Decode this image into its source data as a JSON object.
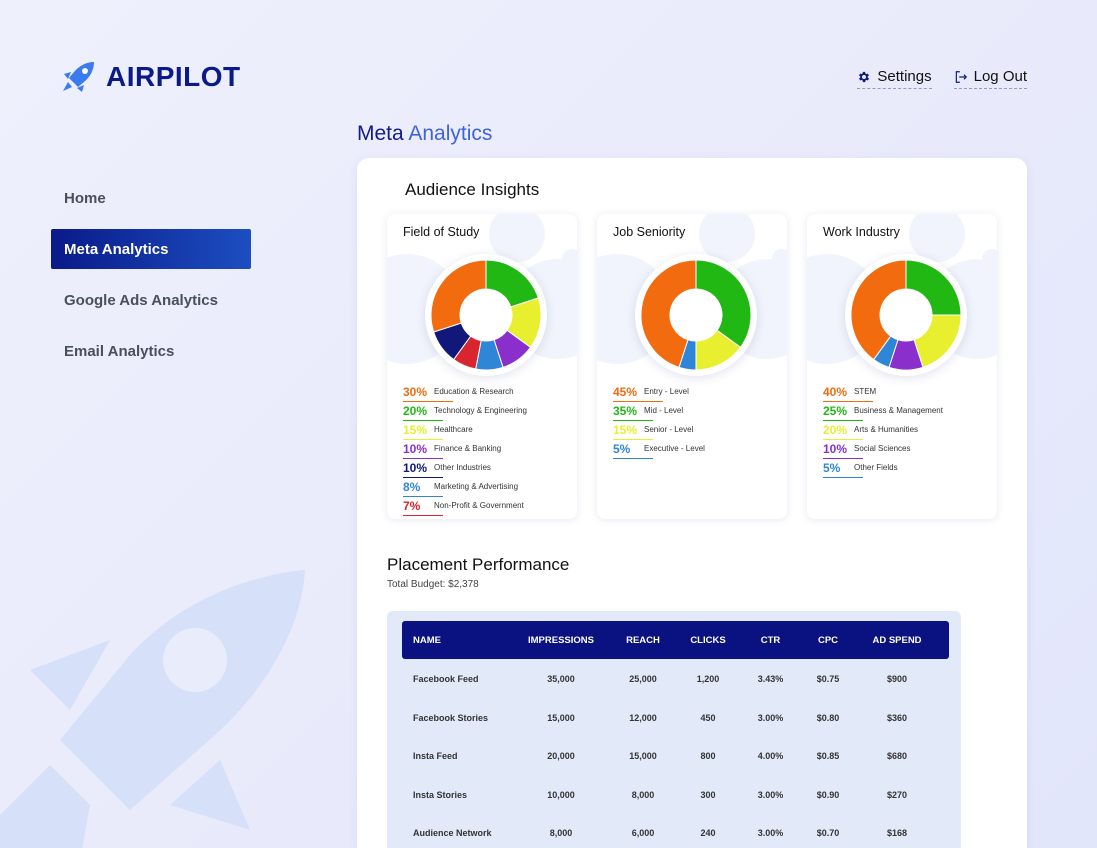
{
  "app": {
    "name": "AIRPILOT",
    "logo_icon": "rocket-icon",
    "brand_color": "#0a1a8a"
  },
  "header": {
    "settings_label": "Settings",
    "settings_icon": "gear-icon",
    "logout_label": "Log Out",
    "logout_icon": "logout-icon"
  },
  "sidebar": {
    "items": [
      {
        "label": "Home",
        "active": false
      },
      {
        "label": "Meta Analytics",
        "active": true
      },
      {
        "label": "Google Ads Analytics",
        "active": false
      },
      {
        "label": "Email Analytics",
        "active": false
      }
    ]
  },
  "page": {
    "title_part1": "Meta",
    "title_part2": "Analytics"
  },
  "insights": {
    "title": "Audience Insights",
    "cards": [
      {
        "title": "Field of Study",
        "segments": [
          {
            "pct": "30%",
            "value": 30,
            "label": "Education & Research",
            "color": "#f26b0f"
          },
          {
            "pct": "20%",
            "value": 20,
            "label": "Technology & Engineering",
            "color": "#22b814"
          },
          {
            "pct": "15%",
            "value": 15,
            "label": "Healthcare",
            "color": "#e7ef2e"
          },
          {
            "pct": "10%",
            "value": 10,
            "label": "Finance & Banking",
            "color": "#8b2fcc"
          },
          {
            "pct": "10%",
            "value": 10,
            "label": "Other Industries",
            "color": "#12177a"
          },
          {
            "pct": "8%",
            "value": 8,
            "label": "Marketing & Advertising",
            "color": "#2f86d6"
          },
          {
            "pct": "7%",
            "value": 7,
            "label": "Non-Profit & Government",
            "color": "#d8252e"
          }
        ],
        "draw_order": [
          1,
          2,
          3,
          5,
          6,
          4,
          0
        ]
      },
      {
        "title": "Job Seniority",
        "segments": [
          {
            "pct": "45%",
            "value": 45,
            "label": "Entry - Level",
            "color": "#f26b0f"
          },
          {
            "pct": "35%",
            "value": 35,
            "label": "Mid - Level",
            "color": "#22b814"
          },
          {
            "pct": "15%",
            "value": 15,
            "label": "Senior - Level",
            "color": "#e7ef2e"
          },
          {
            "pct": "5%",
            "value": 5,
            "label": "Executive - Level",
            "color": "#2f86d6"
          }
        ],
        "draw_order": [
          1,
          2,
          3,
          0
        ]
      },
      {
        "title": "Work Industry",
        "segments": [
          {
            "pct": "40%",
            "value": 40,
            "label": "STEM",
            "color": "#f26b0f"
          },
          {
            "pct": "25%",
            "value": 25,
            "label": "Business & Management",
            "color": "#22b814"
          },
          {
            "pct": "20%",
            "value": 20,
            "label": "Arts & Humanities",
            "color": "#e7ef2e"
          },
          {
            "pct": "10%",
            "value": 10,
            "label": "Social Sciences",
            "color": "#8b2fcc"
          },
          {
            "pct": "5%",
            "value": 5,
            "label": "Other Fields",
            "color": "#2f86d6"
          }
        ],
        "draw_order": [
          1,
          2,
          3,
          4,
          0
        ]
      }
    ]
  },
  "placement": {
    "title": "Placement Performance",
    "budget": "Total Budget: $2,378",
    "columns": [
      "NAME",
      "IMPRESSIONS",
      "REACH",
      "CLICKS",
      "CTR",
      "CPC",
      "AD SPEND"
    ],
    "rows": [
      [
        "Facebook Feed",
        "35,000",
        "25,000",
        "1,200",
        "3.43%",
        "$0.75",
        "$900"
      ],
      [
        "Facebook Stories",
        "15,000",
        "12,000",
        "450",
        "3.00%",
        "$0.80",
        "$360"
      ],
      [
        "Insta Feed",
        "20,000",
        "15,000",
        "800",
        "4.00%",
        "$0.85",
        "$680"
      ],
      [
        "Insta Stories",
        "10,000",
        "8,000",
        "300",
        "3.00%",
        "$0.90",
        "$270"
      ],
      [
        "Audience Network",
        "8,000",
        "6,000",
        "240",
        "3.00%",
        "$0.70",
        "$168"
      ]
    ]
  }
}
